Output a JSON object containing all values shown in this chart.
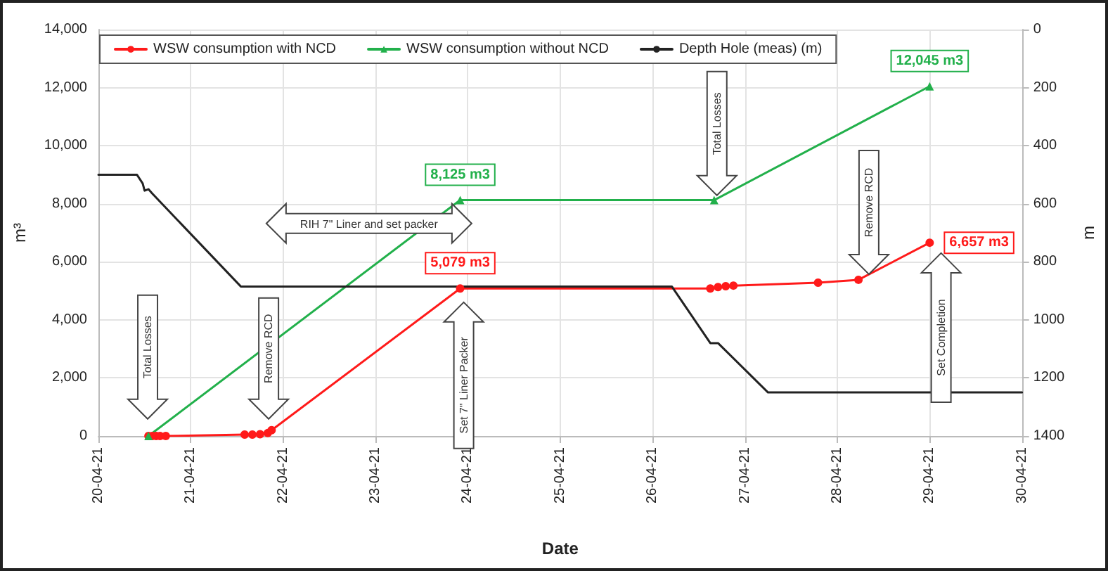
{
  "chart_data": {
    "type": "line",
    "xlabel": "Date",
    "ylabel": "m³",
    "y2label": "m",
    "xlim": [
      "--04-20",
      "--04-30"
    ],
    "xticks": [
      {
        "value": "--04-20",
        "label": "20-04-21"
      },
      {
        "value": "--04-21",
        "label": "21-04-21"
      },
      {
        "value": "--04-22",
        "label": "22-04-21"
      },
      {
        "value": "--04-23",
        "label": "23-04-21"
      },
      {
        "value": "--04-24",
        "label": "24-04-21"
      },
      {
        "value": "--04-25",
        "label": "25-04-21"
      },
      {
        "value": "--04-26",
        "label": "26-04-21"
      },
      {
        "value": "--04-27",
        "label": "27-04-21"
      },
      {
        "value": "--04-28",
        "label": "28-04-21"
      },
      {
        "value": "--04-29",
        "label": "29-04-21"
      },
      {
        "value": "--04-30",
        "label": "30-04-21"
      }
    ],
    "ylim": [
      0,
      14000
    ],
    "yticks": [
      0,
      {
        "value": 2000,
        "label": "2,000"
      },
      {
        "value": 4000,
        "label": "4,000"
      },
      {
        "value": 6000,
        "label": "6,000"
      },
      {
        "value": 8000,
        "label": "8,000"
      },
      {
        "value": 10000,
        "label": "10,000"
      },
      {
        "value": 12000,
        "label": "12,000"
      },
      {
        "value": 14000,
        "label": "14,000"
      }
    ],
    "y2lim": [
      1400,
      0
    ],
    "y2ticks": [
      0,
      200,
      400,
      600,
      800,
      1000,
      1200,
      1400
    ],
    "grid": true,
    "legend": "top left",
    "series": [
      {
        "name": "WSW consumption with NCD",
        "color": "#ff1a1a",
        "marker": "circle",
        "x": [
          "--04-20T13:00",
          "--04-20T14:00",
          "--04-20T15:00",
          "--04-20T16:00",
          "--04-20T17:30",
          "--04-21T14:00",
          "--04-21T16:00",
          "--04-21T18:00",
          "--04-21T20:00",
          "--04-21T21:00",
          "--04-23T22:00",
          "--04-26T15:00",
          "--04-26T17:00",
          "--04-26T19:00",
          "--04-26T21:00",
          "--04-27T19:00",
          "--04-28T05:30",
          "--04-29T00:00"
        ],
        "values": [
          0,
          0,
          0,
          0,
          0,
          50,
          50,
          60,
          100,
          200,
          5079,
          5079,
          5130,
          5160,
          5180,
          5280,
          5380,
          6657
        ],
        "value_labels": [
          null,
          null,
          null,
          null,
          null,
          null,
          null,
          null,
          null,
          null,
          "5,079 m3",
          null,
          null,
          null,
          null,
          null,
          null,
          "6,657 m3"
        ]
      },
      {
        "name": "WSW consumption without NCD",
        "color": "#22b04b",
        "marker": "triangle",
        "x": [
          "--04-20T13:00",
          "--04-23T22:00",
          "--04-26T16:00",
          "--04-29T00:00"
        ],
        "values": [
          0,
          8125,
          8125,
          12045
        ],
        "value_labels": [
          null,
          "8,125 m3",
          null,
          "12,045 m3"
        ]
      },
      {
        "name": "Depth Hole (meas) (m)",
        "color": "#222222",
        "marker": "none",
        "axis": "y2",
        "x": [
          "--04-20T00:00",
          "--04-20T10:00",
          "--04-20T11:30",
          "--04-20T12:00",
          "--04-20T13:00",
          "--04-20T14:00",
          "--04-21T13:00",
          "--04-26T05:00",
          "--04-26T15:00",
          "--04-26T17:00",
          "--04-27T06:00",
          "--04-30T00:00"
        ],
        "values": [
          500,
          500,
          530,
          555,
          550,
          565,
          885,
          885,
          1080,
          1080,
          1250,
          1250
        ]
      }
    ],
    "annotations": [
      "Total Losses",
      "Remove RCD",
      "RIH 7\" Liner and set packer",
      "Set 7\" Liner Packer",
      "Total Losses",
      "Remove RCD",
      "Set Completion"
    ]
  }
}
